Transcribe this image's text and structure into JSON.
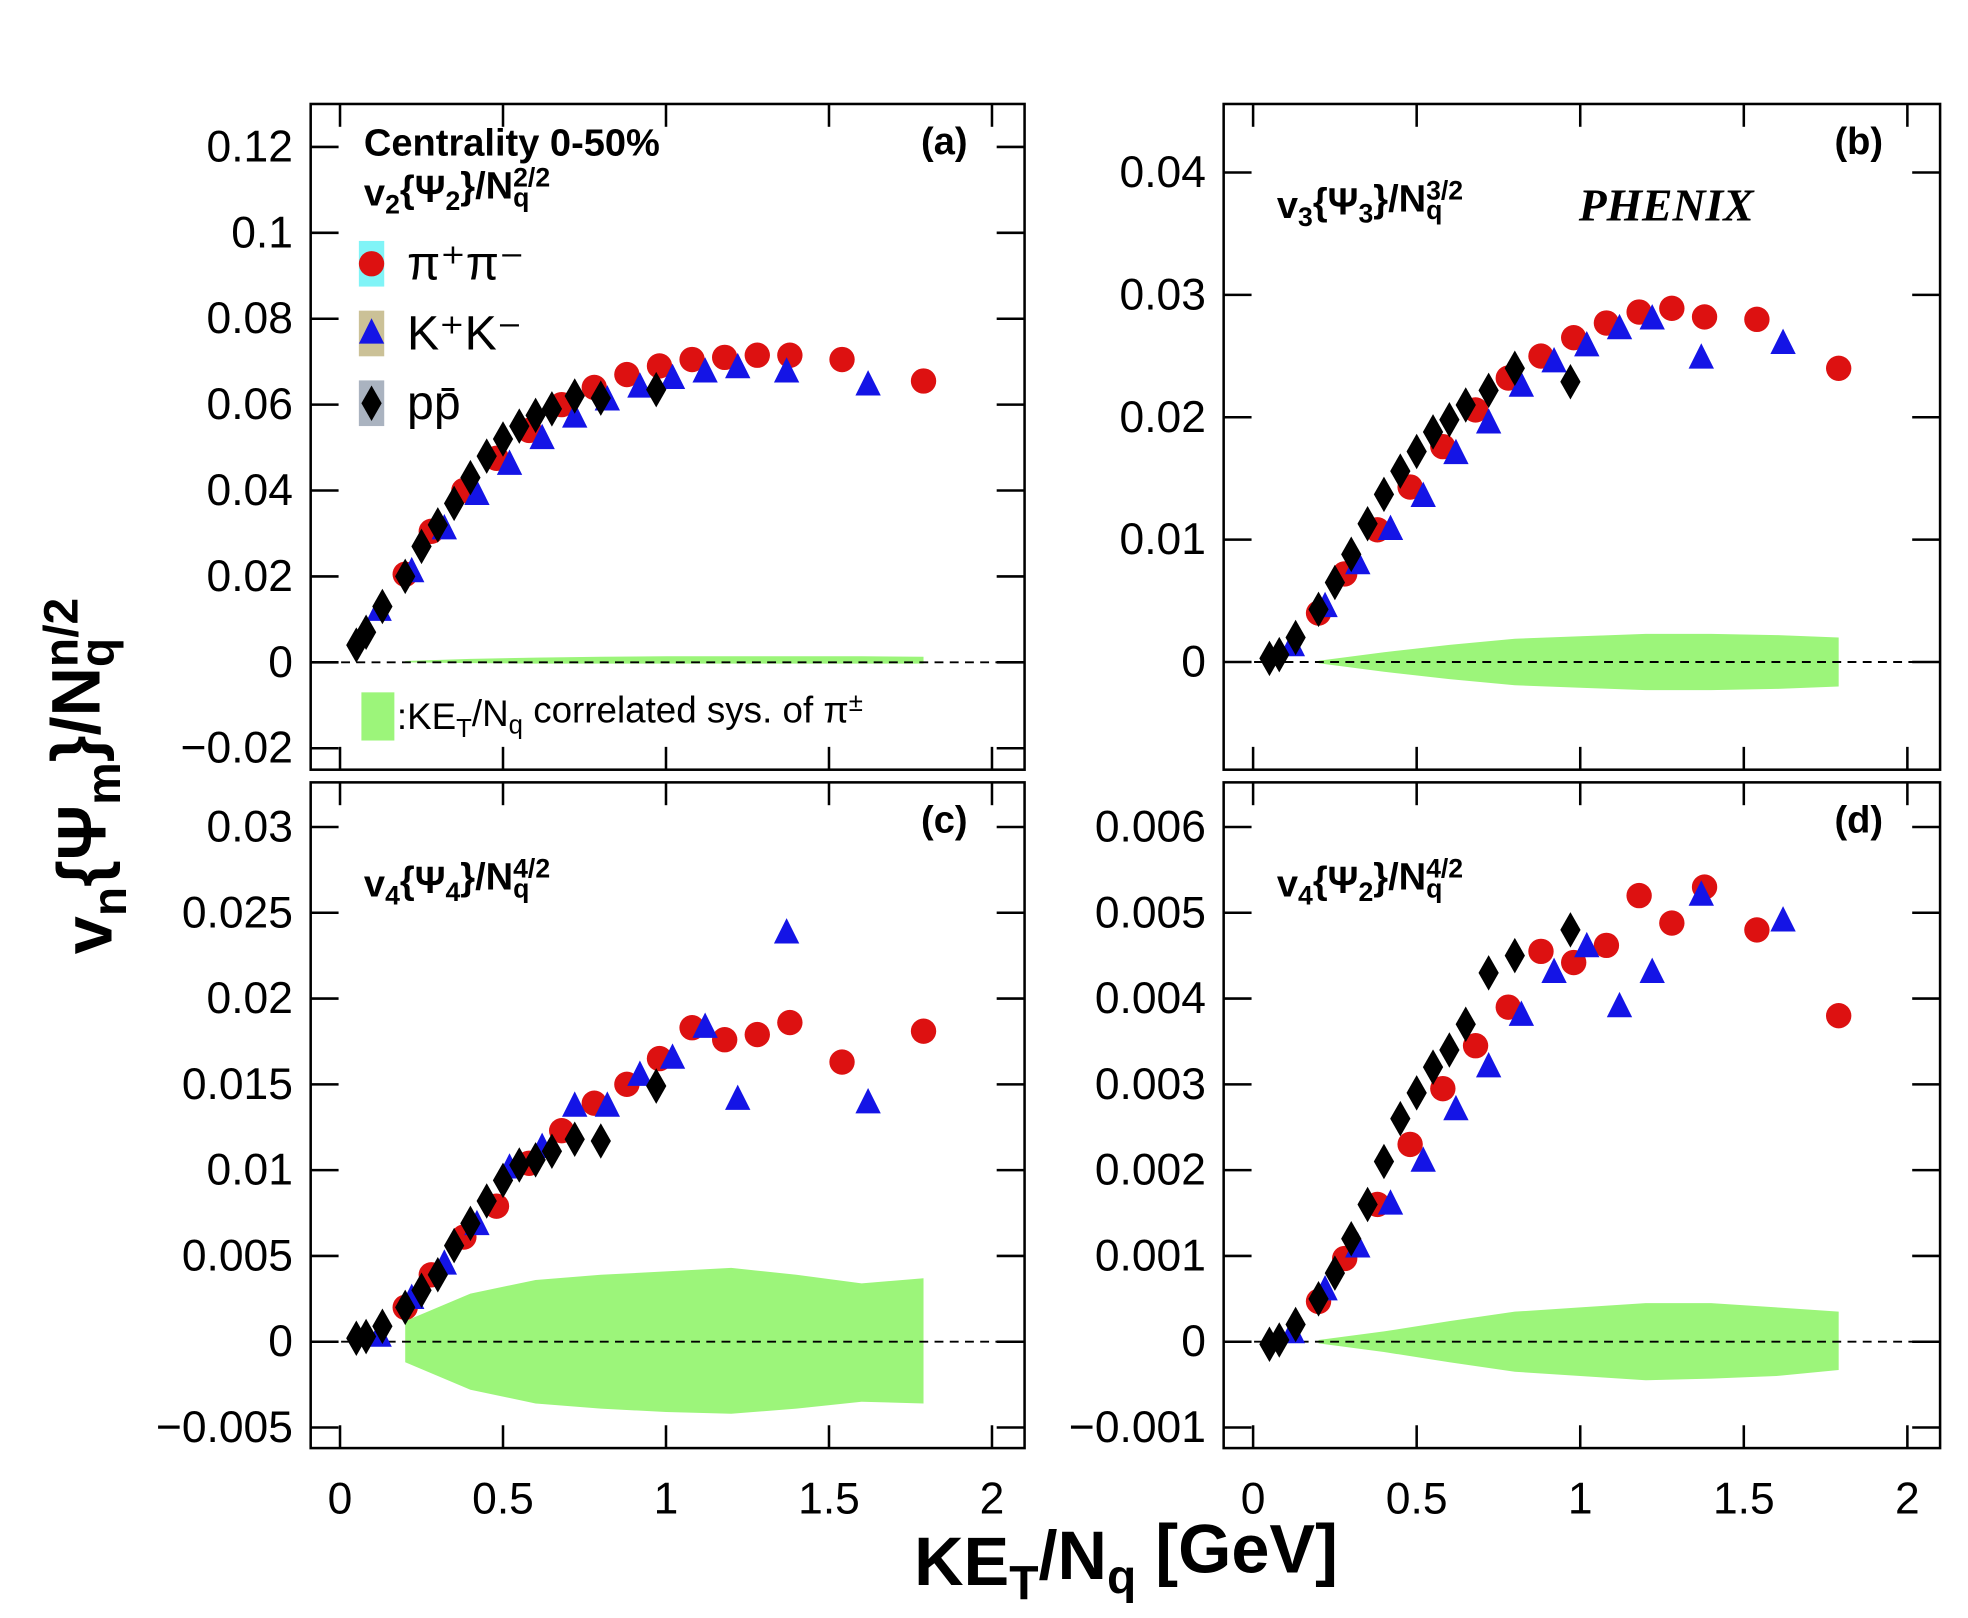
{
  "figure": {
    "ylabel": [
      "v",
      "n",
      "{Ψ",
      "m",
      "}/N",
      "q",
      "n/2"
    ],
    "xlabel": [
      "KE",
      "T",
      "/N",
      "q",
      " [GeV]"
    ]
  },
  "chart_data": [
    {
      "type": "scatter",
      "tag": "(a)",
      "annotation": "Centrality 0-50%",
      "label": [
        "v",
        "2",
        "{Ψ",
        "2",
        "}/N",
        "q",
        "2/2"
      ],
      "xlim": [
        -0.09,
        2.1
      ],
      "xticks": [
        0,
        0.5,
        1,
        1.5,
        2
      ],
      "show_xtick_labels": false,
      "ylim": [
        -0.025,
        0.13
      ],
      "yticks": [
        {
          "value": -0.02,
          "label": "−0.02"
        },
        0,
        0.02,
        0.04,
        0.06,
        0.08,
        0.1,
        0.12
      ],
      "zero_line": true,
      "legend": "upper left",
      "band": {
        "color": "#9cf57a",
        "label": [
          ":KE",
          "T",
          "/N",
          "q",
          " correlated sys. of π",
          "±"
        ],
        "x": [
          0.2,
          0.4,
          0.6,
          0.8,
          1.0,
          1.2,
          1.4,
          1.6,
          1.79
        ],
        "upper": [
          0.0003,
          0.0008,
          0.0011,
          0.0013,
          0.0014,
          0.0014,
          0.0014,
          0.0014,
          0.0013
        ],
        "lower": [
          0,
          -0.0002,
          -0.0003,
          -0.0003,
          -0.0003,
          -0.0003,
          -0.0003,
          -0.0003,
          -0.0003
        ]
      },
      "series": [
        {
          "name": "π⁺π⁻",
          "color": "#dd1111",
          "marker": "circle",
          "legend_box_color": "#80f4f7",
          "x": [
            0.2,
            0.28,
            0.38,
            0.48,
            0.58,
            0.68,
            0.78,
            0.88,
            0.98,
            1.08,
            1.18,
            1.28,
            1.38,
            1.54,
            1.79
          ],
          "values": [
            0.0205,
            0.0305,
            0.04,
            0.0475,
            0.054,
            0.06,
            0.064,
            0.067,
            0.069,
            0.0705,
            0.071,
            0.0715,
            0.0715,
            0.0705,
            0.0655
          ]
        },
        {
          "name": "K⁺K⁻",
          "color": "#1414e6",
          "marker": "triangle",
          "legend_box_color": "#cbc197",
          "x": [
            0.12,
            0.22,
            0.32,
            0.42,
            0.52,
            0.62,
            0.72,
            0.82,
            0.92,
            1.02,
            1.12,
            1.22,
            1.37,
            1.62
          ],
          "values": [
            0.012,
            0.021,
            0.031,
            0.039,
            0.046,
            0.052,
            0.057,
            0.061,
            0.064,
            0.066,
            0.0675,
            0.0685,
            0.0675,
            0.0645
          ]
        },
        {
          "name": "pp̄",
          "color": "#000000",
          "marker": "diamond",
          "legend_box_color": "#aab3c0",
          "x": [
            0.05,
            0.08,
            0.13,
            0.2,
            0.25,
            0.3,
            0.35,
            0.4,
            0.45,
            0.5,
            0.55,
            0.6,
            0.65,
            0.72,
            0.8,
            0.97
          ],
          "values": [
            0.004,
            0.007,
            0.013,
            0.02,
            0.027,
            0.032,
            0.037,
            0.043,
            0.048,
            0.052,
            0.055,
            0.0575,
            0.059,
            0.062,
            0.0615,
            0.0635
          ]
        }
      ]
    },
    {
      "type": "scatter",
      "tag": "(b)",
      "experiment": "PHENIX",
      "label": [
        "v",
        "3",
        "{Ψ",
        "3",
        "}/N",
        "q",
        "3/2"
      ],
      "xlim": [
        -0.09,
        2.1
      ],
      "xticks": [
        0,
        0.5,
        1,
        1.5,
        2
      ],
      "show_xtick_labels": false,
      "ylim": [
        -0.0088,
        0.0456
      ],
      "yticks": [
        0,
        0.01,
        0.02,
        0.03,
        0.04
      ],
      "zero_line": true,
      "band": {
        "color": "#9cf57a",
        "x": [
          0.2,
          0.4,
          0.6,
          0.8,
          1.0,
          1.2,
          1.4,
          1.6,
          1.79
        ],
        "upper": [
          0.0001,
          0.0008,
          0.0014,
          0.0019,
          0.0021,
          0.0023,
          0.0023,
          0.0022,
          0.002
        ],
        "lower": [
          -0.0001,
          -0.0008,
          -0.0014,
          -0.0019,
          -0.0021,
          -0.0023,
          -0.0023,
          -0.0022,
          -0.002
        ]
      },
      "series": [
        {
          "color": "#dd1111",
          "marker": "circle",
          "x": [
            0.2,
            0.28,
            0.38,
            0.48,
            0.58,
            0.68,
            0.78,
            0.88,
            0.98,
            1.08,
            1.18,
            1.28,
            1.38,
            1.54,
            1.79
          ],
          "values": [
            0.004,
            0.0072,
            0.0108,
            0.0143,
            0.0176,
            0.0206,
            0.0232,
            0.025,
            0.0265,
            0.0277,
            0.0286,
            0.0289,
            0.0282,
            0.028,
            0.024
          ]
        },
        {
          "color": "#1414e6",
          "marker": "triangle",
          "x": [
            0.12,
            0.22,
            0.32,
            0.42,
            0.52,
            0.62,
            0.72,
            0.82,
            0.92,
            1.02,
            1.12,
            1.22,
            1.37,
            1.62
          ],
          "values": [
            0.0013,
            0.0045,
            0.008,
            0.0108,
            0.0135,
            0.017,
            0.0195,
            0.0225,
            0.0245,
            0.0258,
            0.0272,
            0.028,
            0.0248,
            0.026
          ]
        },
        {
          "color": "#000000",
          "marker": "diamond",
          "x": [
            0.05,
            0.08,
            0.13,
            0.2,
            0.25,
            0.3,
            0.35,
            0.4,
            0.45,
            0.5,
            0.55,
            0.6,
            0.65,
            0.72,
            0.8,
            0.97
          ],
          "values": [
            0.0003,
            0.0006,
            0.002,
            0.0043,
            0.0065,
            0.0088,
            0.0113,
            0.0137,
            0.0156,
            0.0172,
            0.0188,
            0.0198,
            0.021,
            0.0222,
            0.024,
            0.0229
          ]
        }
      ]
    },
    {
      "type": "scatter",
      "tag": "(c)",
      "label": [
        "v",
        "4",
        "{Ψ",
        "4",
        "}/N",
        "q",
        "4/2"
      ],
      "xlim": [
        -0.09,
        2.1
      ],
      "xticks": [
        0,
        0.5,
        1,
        1.5,
        2
      ],
      "show_xtick_labels": true,
      "ylim": [
        -0.0062,
        0.0326
      ],
      "yticks": [
        {
          "value": -0.005,
          "label": "−0.005"
        },
        0,
        0.005,
        0.01,
        0.015,
        0.02,
        0.025,
        0.03
      ],
      "zero_line": true,
      "band": {
        "color": "#9cf57a",
        "x": [
          0.2,
          0.4,
          0.6,
          0.8,
          1.0,
          1.2,
          1.4,
          1.6,
          1.79
        ],
        "upper": [
          0.0012,
          0.0028,
          0.0036,
          0.0039,
          0.0041,
          0.0043,
          0.0039,
          0.0034,
          0.0037
        ],
        "lower": [
          -0.0012,
          -0.0028,
          -0.0036,
          -0.0039,
          -0.0041,
          -0.0042,
          -0.0039,
          -0.0035,
          -0.0036
        ]
      },
      "series": [
        {
          "color": "#dd1111",
          "marker": "circle",
          "x": [
            0.2,
            0.28,
            0.38,
            0.48,
            0.58,
            0.68,
            0.78,
            0.88,
            0.98,
            1.08,
            1.18,
            1.28,
            1.38,
            1.54,
            1.79
          ],
          "values": [
            0.002,
            0.0039,
            0.0061,
            0.0079,
            0.0104,
            0.0123,
            0.0139,
            0.015,
            0.0165,
            0.0183,
            0.0176,
            0.0179,
            0.0186,
            0.0163,
            0.0181
          ]
        },
        {
          "color": "#1414e6",
          "marker": "triangle",
          "x": [
            0.12,
            0.22,
            0.32,
            0.42,
            0.52,
            0.62,
            0.72,
            0.82,
            0.92,
            1.02,
            1.12,
            1.22,
            1.37,
            1.62
          ],
          "values": [
            0.0003,
            0.0025,
            0.0045,
            0.0068,
            0.0101,
            0.0113,
            0.0137,
            0.0137,
            0.0155,
            0.0165,
            0.0183,
            0.0141,
            0.0238,
            0.0139
          ]
        },
        {
          "color": "#000000",
          "marker": "diamond",
          "x": [
            0.05,
            0.08,
            0.13,
            0.2,
            0.25,
            0.3,
            0.35,
            0.4,
            0.45,
            0.5,
            0.55,
            0.6,
            0.65,
            0.72,
            0.8,
            0.97
          ],
          "values": [
            0.0002,
            0.0003,
            0.0009,
            0.002,
            0.003,
            0.0039,
            0.0056,
            0.0069,
            0.0082,
            0.0094,
            0.0103,
            0.0106,
            0.0111,
            0.0118,
            0.0117,
            0.0149
          ]
        }
      ]
    },
    {
      "type": "scatter",
      "tag": "(d)",
      "label": [
        "v",
        "4",
        "{Ψ",
        "2",
        "}/N",
        "q",
        "4/2"
      ],
      "xlim": [
        -0.09,
        2.1
      ],
      "xticks": [
        0,
        0.5,
        1,
        1.5,
        2
      ],
      "show_xtick_labels": true,
      "ylim": [
        -0.00124,
        0.00652
      ],
      "yticks": [
        {
          "value": -0.001,
          "label": "−0.001"
        },
        0,
        0.001,
        0.002,
        0.003,
        0.004,
        0.005,
        0.006
      ],
      "zero_line": true,
      "band": {
        "color": "#9cf57a",
        "x": [
          0.2,
          0.4,
          0.6,
          0.8,
          1.0,
          1.2,
          1.4,
          1.6,
          1.79
        ],
        "upper": [
          2e-05,
          0.00012,
          0.00024,
          0.00035,
          0.0004,
          0.00045,
          0.00045,
          0.0004,
          0.00035
        ],
        "lower": [
          -2e-05,
          -0.00012,
          -0.00024,
          -0.00035,
          -0.0004,
          -0.00045,
          -0.00043,
          -0.0004,
          -0.00033
        ]
      },
      "series": [
        {
          "color": "#dd1111",
          "marker": "circle",
          "x": [
            0.2,
            0.28,
            0.38,
            0.48,
            0.58,
            0.68,
            0.78,
            0.88,
            0.98,
            1.08,
            1.18,
            1.28,
            1.38,
            1.54,
            1.79
          ],
          "values": [
            0.00047,
            0.00097,
            0.0016,
            0.0023,
            0.00295,
            0.00345,
            0.0039,
            0.00455,
            0.00442,
            0.00462,
            0.0052,
            0.00488,
            0.0053,
            0.0048,
            0.0038
          ]
        },
        {
          "color": "#1414e6",
          "marker": "triangle",
          "x": [
            0.12,
            0.22,
            0.32,
            0.42,
            0.52,
            0.62,
            0.72,
            0.82,
            0.92,
            1.02,
            1.12,
            1.22,
            1.37,
            1.62
          ],
          "values": [
            0.0001,
            0.0006,
            0.0011,
            0.0016,
            0.0021,
            0.0027,
            0.0032,
            0.0038,
            0.0043,
            0.0046,
            0.0039,
            0.0043,
            0.0052,
            0.0049
          ]
        },
        {
          "color": "#000000",
          "marker": "diamond",
          "x": [
            0.05,
            0.08,
            0.13,
            0.2,
            0.25,
            0.3,
            0.35,
            0.4,
            0.45,
            0.5,
            0.55,
            0.6,
            0.65,
            0.72,
            0.8,
            0.97
          ],
          "values": [
            -3e-05,
            2e-05,
            0.0002,
            0.0005,
            0.0008,
            0.0012,
            0.0016,
            0.0021,
            0.0026,
            0.0029,
            0.0032,
            0.0034,
            0.0037,
            0.0043,
            0.0045,
            0.0048
          ]
        }
      ]
    }
  ]
}
